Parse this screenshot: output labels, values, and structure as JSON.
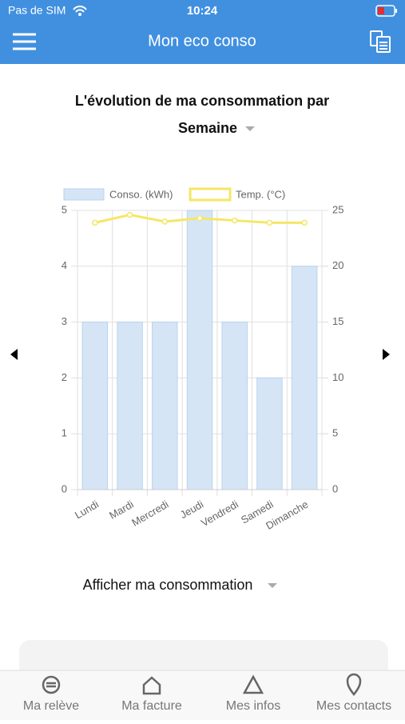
{
  "status_bar": {
    "carrier": "Pas de SIM",
    "time": "10:24"
  },
  "header": {
    "title": "Mon eco conso"
  },
  "chart_data": {
    "type": "bar",
    "title": "L'évolution de ma consommation par",
    "categories": [
      "Lundi",
      "Mardi",
      "Mercredi",
      "Jeudi",
      "Vendredi",
      "Samedi",
      "Dimanche"
    ],
    "series": [
      {
        "name": "Conso. (kWh)",
        "type": "bar",
        "color": "#d5e5f6",
        "values": [
          3,
          3,
          3,
          5,
          3,
          2,
          4
        ]
      },
      {
        "name": "Temp. (°C)",
        "type": "line",
        "color": "#f4e766",
        "axis": "y2",
        "values": [
          23.9,
          24.6,
          24.0,
          24.3,
          24.1,
          23.9,
          23.9
        ]
      }
    ],
    "ylim": [
      0,
      5
    ],
    "yticks": [
      0,
      1,
      2,
      3,
      4,
      5
    ],
    "y2lim": [
      0,
      25
    ],
    "y2ticks": [
      0,
      5,
      10,
      15,
      20,
      25
    ],
    "grid": true,
    "legend": "top"
  },
  "period_select": {
    "label": "Semaine"
  },
  "display_select": {
    "label": "Afficher ma consommation"
  },
  "tabs": [
    "Ma relève",
    "Ma facture",
    "Mes infos",
    "Mes contacts"
  ]
}
